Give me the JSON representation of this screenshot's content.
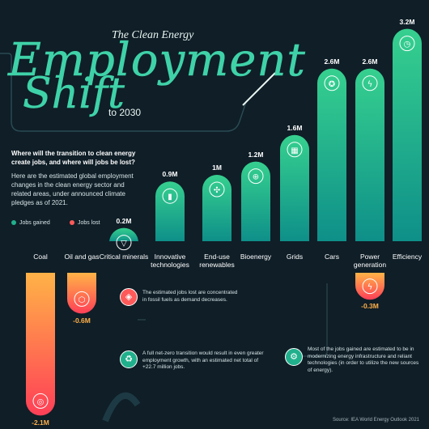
{
  "header": {
    "subtitle_top": "The Clean Energy",
    "title_line1": "Employment",
    "title_line2": "Shift",
    "subtitle_bottom": "to 2030"
  },
  "intro": {
    "question": "Where will the transition to clean energy create jobs, and where will jobs be lost?",
    "description": "Here are the estimated global employment changes in the clean energy sector and related areas, under announced climate pledges as of 2021."
  },
  "legend": {
    "gained_label": "Jobs gained",
    "lost_label": "Jobs lost",
    "gained_color": "#21b08c",
    "lost_color": "#ff5a5a"
  },
  "chart_data": {
    "type": "bar",
    "categories": [
      "Coal",
      "Oil and gas",
      "Critical minerals",
      "Innovative technologies",
      "End-use renewables",
      "Bioenergy",
      "Grids",
      "Cars",
      "Power generation",
      "Efficiency"
    ],
    "values": [
      -2.1,
      -0.6,
      0.2,
      0.9,
      1.0,
      1.2,
      1.6,
      2.6,
      2.6,
      3.2
    ],
    "value_labels": [
      "-2.1M",
      "-0.6M",
      "0.2M",
      "0.9M",
      "1M",
      "1.2M",
      "1.6M",
      "2.6M",
      "2.6M",
      "3.2M"
    ],
    "power_generation_lost": -0.3,
    "power_generation_lost_label": "-0.3M",
    "unit": "millions of jobs",
    "icons": [
      "coal-icon",
      "oil-drop-icon",
      "minerals-icon",
      "battery-icon",
      "windmill-icon",
      "bioenergy-icon",
      "grid-icon",
      "car-wheel-icon",
      "lightning-icon",
      "clock-icon"
    ]
  },
  "notes": {
    "lost_note": "The estimated jobs lost are concentrated in fossil fuels as demand decreases.",
    "net_note": "A full net-zero transition would result in even greater employment growth, with an estimated net total of +22.7 million jobs.",
    "gained_note": "Most of the jobs gained are estimated to be in modernizing energy infrastructure and reliant technologies (in order to utilize the new sources of energy)."
  },
  "source": "Source: IEA World Energy Outlook 2021"
}
